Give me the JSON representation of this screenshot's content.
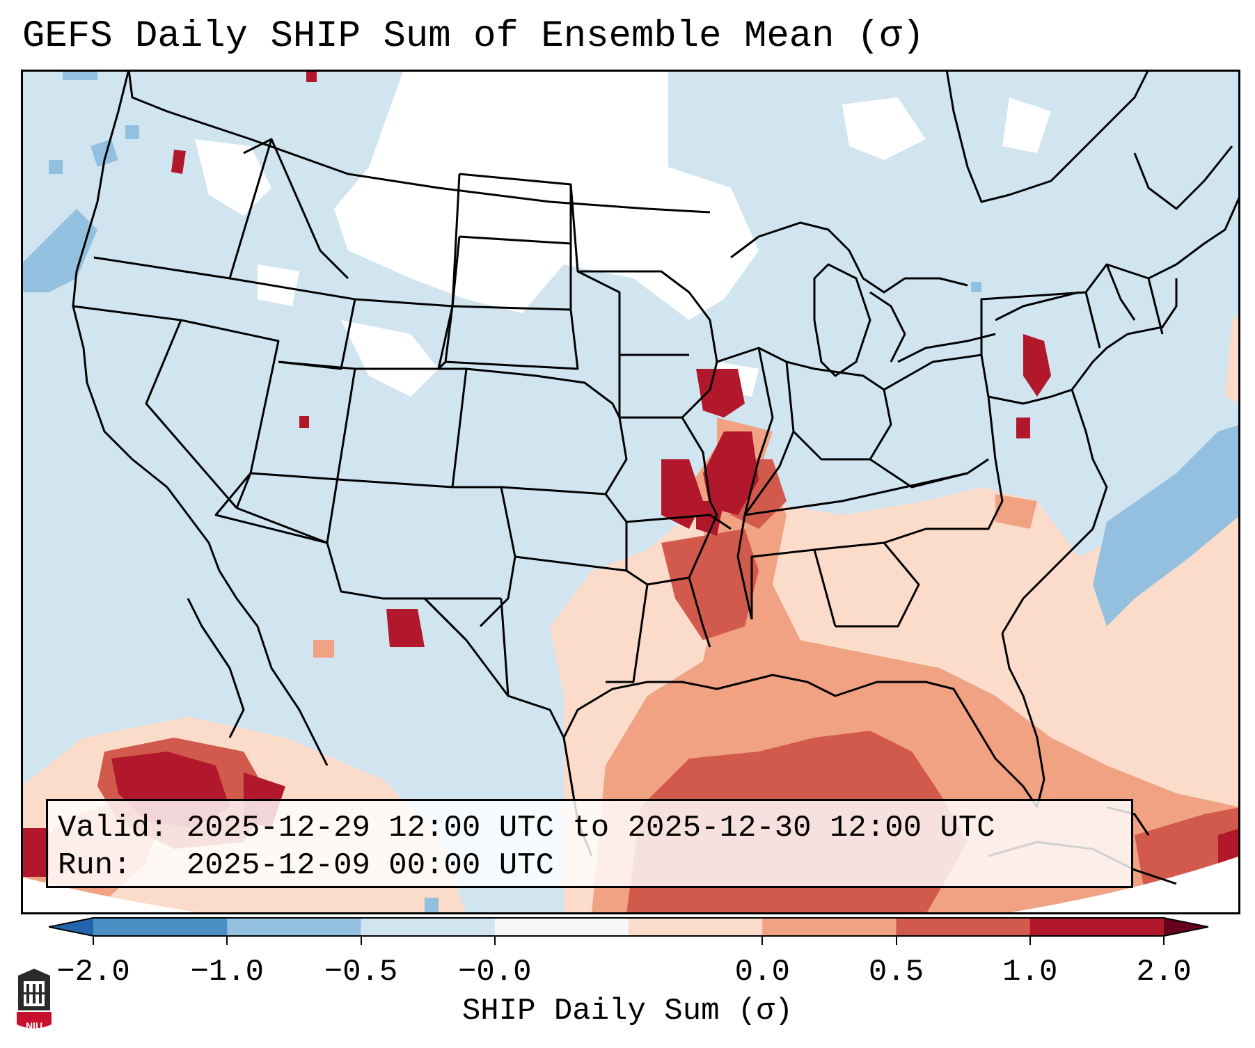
{
  "title": "GEFS Daily SHIP Sum of Ensemble Mean (σ)",
  "info": {
    "valid_label": "Valid:",
    "valid_value": "2025-12-29 12:00 UTC to 2025-12-30 12:00 UTC",
    "run_label": "Run:",
    "run_value": "2025-12-09 00:00 UTC"
  },
  "colorbar": {
    "label": "SHIP Daily Sum (σ)",
    "ticks": [
      "−2.0",
      "−1.0",
      "−0.5",
      "−0.0",
      "0.0",
      "0.5",
      "1.0",
      "2.0"
    ],
    "colors": [
      "#4a8fc4",
      "#92c0de",
      "#d1e5f0",
      "#f7f7f7",
      "#fbdccb",
      "#f0a283",
      "#d15a4c",
      "#b2182b"
    ],
    "extend": "both"
  },
  "map": {
    "region": "Continental United States",
    "projection": "Lambert conformal",
    "palette": {
      "land_default": "#d1e5f0",
      "neutral": "#ffffff",
      "outline": "#000000"
    }
  },
  "logo": {
    "name": "niu-logo",
    "text": "NIU"
  }
}
